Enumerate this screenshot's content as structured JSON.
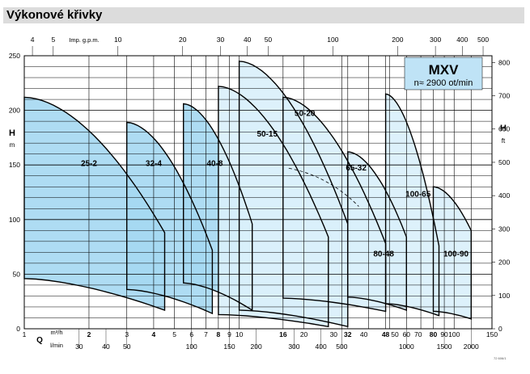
{
  "header": {
    "title": "Výkonové křivky"
  },
  "chart_data": {
    "type": "area",
    "title": "Výkonové křivky",
    "model": "MXV",
    "speed_label": "n≈ 2900 ot/min",
    "y_left": {
      "label": "H",
      "unit": "m",
      "range": [
        0,
        250
      ],
      "ticks": [
        0,
        50,
        100,
        150,
        200,
        250
      ]
    },
    "y_right": {
      "label": "H",
      "unit": "ft",
      "range": [
        0,
        820
      ],
      "ticks": [
        0,
        100,
        200,
        300,
        400,
        500,
        600,
        700,
        800
      ]
    },
    "x_bottom_m3h": {
      "unit": "m³/h",
      "label": "Q",
      "scale": "log",
      "range": [
        1,
        150
      ],
      "ticks": [
        "1",
        "2",
        "3",
        "4",
        "5",
        "6",
        "7",
        "8",
        "9",
        "10",
        "16",
        "20",
        "30",
        "32",
        "40",
        "48",
        "50",
        "60",
        "70",
        "80",
        "90",
        "100",
        "150"
      ]
    },
    "x_bottom_lmin": {
      "unit": "l/min",
      "ticks": [
        "30",
        "40",
        "50",
        "100",
        "150",
        "200",
        "300",
        "400",
        "500",
        "1000",
        "1500",
        "2000"
      ]
    },
    "x_top_gpm": {
      "unit": "Imp. g.p.m.",
      "ticks": [
        "4",
        "5",
        "10",
        "20",
        "30",
        "40",
        "50",
        "100",
        "200",
        "300",
        "400",
        "500"
      ]
    },
    "series": [
      {
        "name": "25-2",
        "q_range_m3h": [
          1,
          4.5
        ],
        "h_max": [
          212,
          88
        ],
        "h_min": [
          46,
          17
        ]
      },
      {
        "name": "32-4",
        "q_range_m3h": [
          3,
          7.5
        ],
        "h_max": [
          189,
          72
        ],
        "h_min": [
          36,
          14
        ]
      },
      {
        "name": "40-8",
        "q_range_m3h": [
          5.5,
          11.5
        ],
        "h_max": [
          206,
          96
        ],
        "h_min": [
          42,
          17
        ]
      },
      {
        "name": "50-15",
        "q_range_m3h": [
          8,
          26
        ],
        "h_max": [
          222,
          84
        ],
        "h_min": [
          13,
          2
        ]
      },
      {
        "name": "50-20",
        "q_range_m3h": [
          10,
          32
        ],
        "h_max": [
          245,
          96
        ],
        "h_min": [
          17,
          2
        ]
      },
      {
        "name": "65-32",
        "q_range_m3h": [
          16,
          48
        ],
        "h_max": [
          212,
          78
        ],
        "h_min": [
          28,
          16
        ]
      },
      {
        "name": "80-48",
        "q_range_m3h": [
          32,
          60
        ],
        "h_max": [
          162,
          84
        ],
        "h_min": [
          29,
          17
        ]
      },
      {
        "name": "100-65",
        "q_range_m3h": [
          48,
          85
        ],
        "h_max": [
          215,
          76
        ],
        "h_min": [
          23,
          12
        ]
      },
      {
        "name": "100-90",
        "q_range_m3h": [
          80,
          120
        ],
        "h_max": [
          130,
          90
        ],
        "h_min": [
          16,
          9
        ]
      }
    ],
    "colors": {
      "dark_fill": "#a5d8f2",
      "light_fill": "#d9f0fb",
      "grid": "#000000"
    }
  },
  "footer_code": "72 606/1"
}
